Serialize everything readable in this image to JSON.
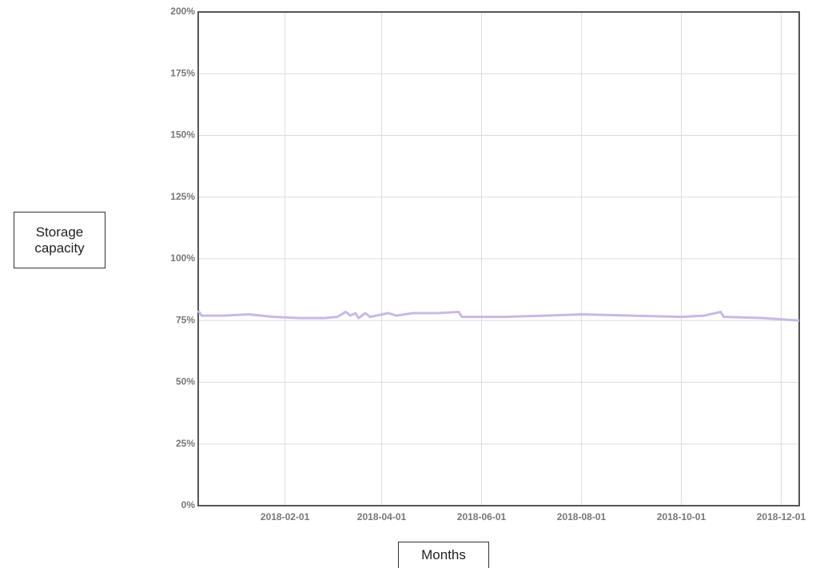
{
  "chart_data": {
    "type": "line",
    "y_label": "Storage capacity",
    "x_label": "Months",
    "x": [
      "2017-12-10",
      "2017-12-12",
      "2017-12-25",
      "2018-01-10",
      "2018-01-25",
      "2018-02-10",
      "2018-02-25",
      "2018-03-05",
      "2018-03-10",
      "2018-03-13",
      "2018-03-16",
      "2018-03-18",
      "2018-03-22",
      "2018-03-25",
      "2018-04-05",
      "2018-04-10",
      "2018-04-20",
      "2018-05-05",
      "2018-05-18",
      "2018-05-20",
      "2018-06-15",
      "2018-07-10",
      "2018-08-01",
      "2018-09-01",
      "2018-10-01",
      "2018-10-15",
      "2018-10-25",
      "2018-10-27",
      "2018-11-20",
      "2018-12-12"
    ],
    "series": [
      {
        "name": "Storage capacity",
        "color": "#c9b9e2",
        "values": [
          79,
          77,
          77,
          77.5,
          76.5,
          76,
          76,
          76.5,
          78.5,
          77,
          78,
          76,
          78,
          76.5,
          78,
          77,
          78,
          78,
          78.5,
          76.5,
          76.5,
          77,
          77.5,
          77,
          76.5,
          77,
          78.5,
          76.5,
          76,
          75
        ]
      }
    ],
    "xlim": [
      "2017-12-10",
      "2018-12-12"
    ],
    "xticks": [
      "2018-02-01",
      "2018-04-01",
      "2018-06-01",
      "2018-08-01",
      "2018-10-01",
      "2018-12-01"
    ],
    "ylim": [
      0,
      200
    ],
    "yticks": [
      {
        "value": 0,
        "label": "0%"
      },
      {
        "value": 25,
        "label": "25%"
      },
      {
        "value": 50,
        "label": "50%"
      },
      {
        "value": 75,
        "label": "75%"
      },
      {
        "value": 100,
        "label": "100%"
      },
      {
        "value": 125,
        "label": "125%"
      },
      {
        "value": 150,
        "label": "150%"
      },
      {
        "value": 175,
        "label": "175%"
      },
      {
        "value": 200,
        "label": "200%"
      }
    ],
    "grid": true
  }
}
